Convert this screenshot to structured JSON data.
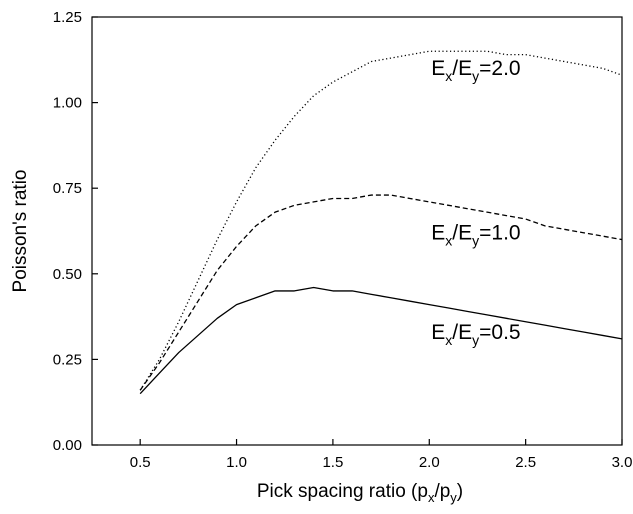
{
  "chart_data": {
    "type": "line",
    "xlabel": "Pick spacing ratio (p",
    "xlabel_sub1": "x",
    "xlabel_mid": "/p",
    "xlabel_sub2": "y",
    "xlabel_end": ")",
    "ylabel": "Poisson's ratio",
    "xlim": [
      0.25,
      3.0
    ],
    "ylim": [
      0.0,
      1.25
    ],
    "xticks": [
      0.5,
      1.0,
      1.5,
      2.0,
      2.5,
      3.0
    ],
    "xtick_labels": [
      "0.5",
      "1.0",
      "1.5",
      "2.0",
      "2.5",
      "3.0"
    ],
    "yticks": [
      0.0,
      0.25,
      0.5,
      0.75,
      1.0,
      1.25
    ],
    "ytick_labels": [
      "0.00",
      "0.25",
      "0.50",
      "0.75",
      "1.00",
      "1.25"
    ],
    "grid": false,
    "legend": "none",
    "series": [
      {
        "label_E1": "E",
        "label_sub1": "x",
        "label_mid": "/E",
        "label_sub2": "y",
        "label_value": "=2.0",
        "dash": "dotted",
        "x": [
          0.5,
          0.6,
          0.7,
          0.8,
          0.9,
          1.0,
          1.1,
          1.2,
          1.3,
          1.4,
          1.5,
          1.6,
          1.7,
          1.8,
          1.9,
          2.0,
          2.1,
          2.2,
          2.3,
          2.4,
          2.5,
          2.6,
          2.7,
          2.8,
          2.9,
          3.0
        ],
        "y": [
          0.16,
          0.25,
          0.36,
          0.48,
          0.6,
          0.71,
          0.81,
          0.89,
          0.96,
          1.02,
          1.06,
          1.09,
          1.12,
          1.13,
          1.14,
          1.15,
          1.15,
          1.15,
          1.15,
          1.14,
          1.14,
          1.13,
          1.12,
          1.11,
          1.1,
          1.08
        ]
      },
      {
        "label_E1": "E",
        "label_sub1": "x",
        "label_mid": "/E",
        "label_sub2": "y",
        "label_value": "=1.0",
        "dash": "dashed",
        "x": [
          0.5,
          0.6,
          0.7,
          0.8,
          0.9,
          1.0,
          1.1,
          1.2,
          1.3,
          1.4,
          1.5,
          1.6,
          1.7,
          1.8,
          1.9,
          2.0,
          2.1,
          2.2,
          2.3,
          2.4,
          2.5,
          2.6,
          2.7,
          2.8,
          2.9,
          3.0
        ],
        "y": [
          0.16,
          0.24,
          0.33,
          0.42,
          0.51,
          0.58,
          0.64,
          0.68,
          0.7,
          0.71,
          0.72,
          0.72,
          0.73,
          0.73,
          0.72,
          0.71,
          0.7,
          0.69,
          0.68,
          0.67,
          0.66,
          0.64,
          0.63,
          0.62,
          0.61,
          0.6
        ]
      },
      {
        "label_E1": "E",
        "label_sub1": "x",
        "label_mid": "/E",
        "label_sub2": "y",
        "label_value": "=0.5",
        "dash": "solid",
        "x": [
          0.5,
          0.6,
          0.7,
          0.8,
          0.9,
          1.0,
          1.1,
          1.2,
          1.3,
          1.4,
          1.5,
          1.6,
          1.7,
          1.8,
          1.9,
          2.0,
          2.1,
          2.2,
          2.3,
          2.4,
          2.5,
          2.6,
          2.7,
          2.8,
          2.9,
          3.0
        ],
        "y": [
          0.15,
          0.21,
          0.27,
          0.32,
          0.37,
          0.41,
          0.43,
          0.45,
          0.45,
          0.46,
          0.45,
          0.45,
          0.44,
          0.43,
          0.42,
          0.41,
          0.4,
          0.39,
          0.38,
          0.37,
          0.36,
          0.35,
          0.34,
          0.33,
          0.32,
          0.31
        ]
      }
    ],
    "annotations": [
      {
        "series": 0,
        "x": 2.0,
        "y": 1.08
      },
      {
        "series": 1,
        "x": 2.0,
        "y": 0.6
      },
      {
        "series": 2,
        "x": 2.0,
        "y": 0.31
      }
    ]
  }
}
